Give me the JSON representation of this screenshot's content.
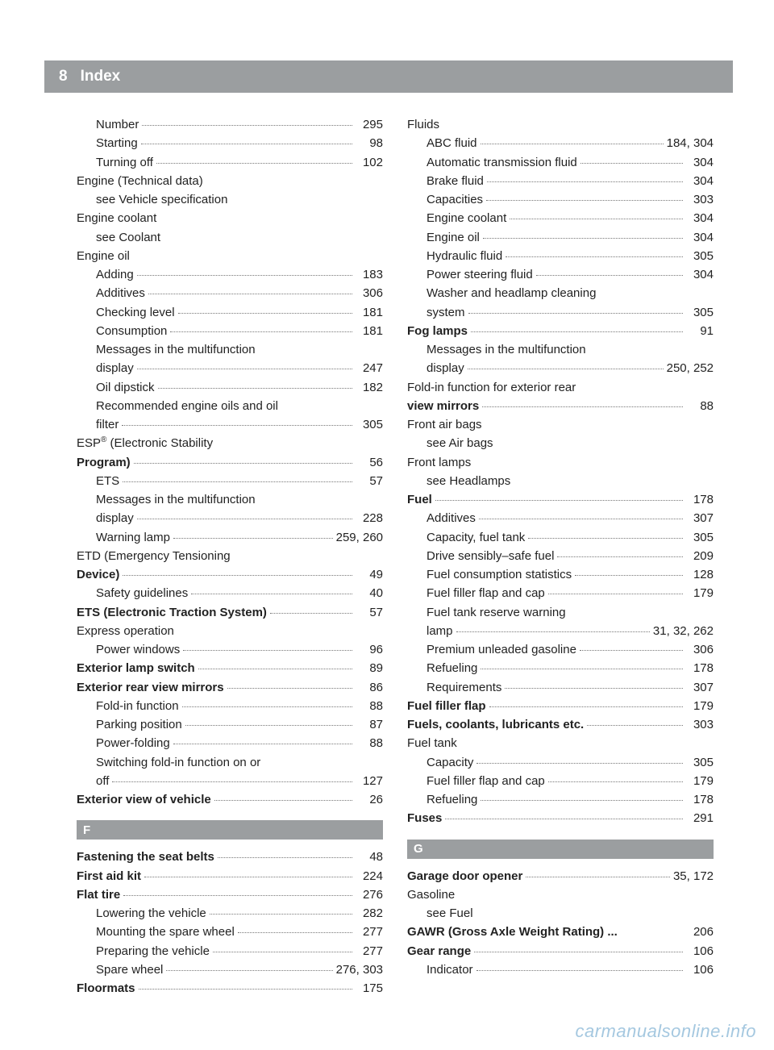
{
  "header": {
    "pagenum": "8",
    "title": "Index"
  },
  "footer": "carmanualsonline.info",
  "left": [
    {
      "type": "row",
      "sub": true,
      "label": "Number",
      "page": "295"
    },
    {
      "type": "row",
      "sub": true,
      "label": "Starting",
      "page": "98"
    },
    {
      "type": "row",
      "sub": true,
      "label": "Turning off",
      "page": "102"
    },
    {
      "type": "plain",
      "bold": true,
      "label": "Engine (Technical data)"
    },
    {
      "type": "plain",
      "sub": true,
      "label": "see Vehicle specification"
    },
    {
      "type": "plain",
      "bold": true,
      "label": "Engine coolant"
    },
    {
      "type": "plain",
      "sub": true,
      "label": "see Coolant"
    },
    {
      "type": "plain",
      "bold": true,
      "label": "Engine oil"
    },
    {
      "type": "row",
      "sub": true,
      "label": "Adding",
      "page": "183"
    },
    {
      "type": "row",
      "sub": true,
      "label": "Additives",
      "page": "306"
    },
    {
      "type": "row",
      "sub": true,
      "label": "Checking level",
      "page": "181"
    },
    {
      "type": "row",
      "sub": true,
      "label": "Consumption",
      "page": "181"
    },
    {
      "type": "plain",
      "sub": true,
      "label": "Messages in the multifunction"
    },
    {
      "type": "row",
      "sub": true,
      "label": "display",
      "page": "247"
    },
    {
      "type": "row",
      "sub": true,
      "label": "Oil dipstick",
      "page": "182"
    },
    {
      "type": "plain",
      "sub": true,
      "label": "Recommended engine oils and oil"
    },
    {
      "type": "row",
      "sub": true,
      "label": "filter",
      "page": "305"
    },
    {
      "type": "plain",
      "bold": true,
      "label": "ESP® (Electronic Stability",
      "sup": true
    },
    {
      "type": "row",
      "bold": true,
      "label": "Program)",
      "page": "56"
    },
    {
      "type": "row",
      "sub": true,
      "label": "ETS",
      "page": "57"
    },
    {
      "type": "plain",
      "sub": true,
      "label": "Messages in the multifunction"
    },
    {
      "type": "row",
      "sub": true,
      "label": "display",
      "page": "228"
    },
    {
      "type": "row",
      "sub": true,
      "label": "Warning lamp",
      "page": "259, 260"
    },
    {
      "type": "plain",
      "bold": true,
      "label": "ETD (Emergency Tensioning"
    },
    {
      "type": "row",
      "bold": true,
      "label": "Device)",
      "page": "49"
    },
    {
      "type": "row",
      "sub": true,
      "label": "Safety guidelines",
      "page": "40"
    },
    {
      "type": "row",
      "bold": true,
      "label": "ETS (Electronic Traction System)",
      "page": "57"
    },
    {
      "type": "plain",
      "bold": true,
      "label": "Express operation"
    },
    {
      "type": "row",
      "sub": true,
      "label": "Power windows",
      "page": "96"
    },
    {
      "type": "row",
      "bold": true,
      "label": "Exterior lamp switch",
      "page": "89"
    },
    {
      "type": "row",
      "bold": true,
      "label": "Exterior rear view mirrors",
      "page": "86"
    },
    {
      "type": "row",
      "sub": true,
      "label": "Fold-in function",
      "page": "88"
    },
    {
      "type": "row",
      "sub": true,
      "label": "Parking position",
      "page": "87"
    },
    {
      "type": "row",
      "sub": true,
      "label": "Power-folding",
      "page": "88"
    },
    {
      "type": "plain",
      "sub": true,
      "label": "Switching fold-in function on or"
    },
    {
      "type": "row",
      "sub": true,
      "label": "off",
      "page": "127"
    },
    {
      "type": "row",
      "bold": true,
      "label": "Exterior view of vehicle",
      "page": "26"
    },
    {
      "type": "section",
      "label": "F"
    },
    {
      "type": "row",
      "bold": true,
      "label": "Fastening the seat belts",
      "page": "48"
    },
    {
      "type": "row",
      "bold": true,
      "label": "First aid kit",
      "page": "224"
    },
    {
      "type": "row",
      "bold": true,
      "label": "Flat tire",
      "page": "276"
    },
    {
      "type": "row",
      "sub": true,
      "label": "Lowering the vehicle",
      "page": "282"
    },
    {
      "type": "row",
      "sub": true,
      "label": "Mounting the spare wheel",
      "page": "277"
    },
    {
      "type": "row",
      "sub": true,
      "label": "Preparing the vehicle",
      "page": "277"
    },
    {
      "type": "row",
      "sub": true,
      "label": "Spare wheel",
      "page": "276, 303"
    },
    {
      "type": "row",
      "bold": true,
      "label": "Floormats",
      "page": "175"
    }
  ],
  "right": [
    {
      "type": "plain",
      "bold": true,
      "label": "Fluids"
    },
    {
      "type": "row",
      "sub": true,
      "label": "ABC fluid",
      "page": "184, 304"
    },
    {
      "type": "row",
      "sub": true,
      "label": "Automatic transmission fluid",
      "page": "304"
    },
    {
      "type": "row",
      "sub": true,
      "label": "Brake fluid",
      "page": "304"
    },
    {
      "type": "row",
      "sub": true,
      "label": "Capacities",
      "page": "303"
    },
    {
      "type": "row",
      "sub": true,
      "label": "Engine coolant",
      "page": "304"
    },
    {
      "type": "row",
      "sub": true,
      "label": "Engine oil",
      "page": "304"
    },
    {
      "type": "row",
      "sub": true,
      "label": "Hydraulic fluid",
      "page": "305"
    },
    {
      "type": "row",
      "sub": true,
      "label": "Power steering fluid",
      "page": "304"
    },
    {
      "type": "plain",
      "sub": true,
      "label": "Washer and headlamp cleaning"
    },
    {
      "type": "row",
      "sub": true,
      "label": "system",
      "page": "305"
    },
    {
      "type": "row",
      "bold": true,
      "label": "Fog lamps",
      "page": "91"
    },
    {
      "type": "plain",
      "sub": true,
      "label": "Messages in the multifunction"
    },
    {
      "type": "row",
      "sub": true,
      "label": "display",
      "page": "250, 252"
    },
    {
      "type": "plain",
      "bold": true,
      "label": "Fold-in function for exterior rear"
    },
    {
      "type": "row",
      "bold": true,
      "label": "view mirrors",
      "page": "88"
    },
    {
      "type": "plain",
      "bold": true,
      "label": "Front air bags"
    },
    {
      "type": "plain",
      "sub": true,
      "label": "see Air bags"
    },
    {
      "type": "plain",
      "bold": true,
      "label": "Front lamps"
    },
    {
      "type": "plain",
      "sub": true,
      "label": "see Headlamps"
    },
    {
      "type": "row",
      "bold": true,
      "label": "Fuel",
      "page": "178"
    },
    {
      "type": "row",
      "sub": true,
      "label": "Additives",
      "page": "307"
    },
    {
      "type": "row",
      "sub": true,
      "label": "Capacity, fuel tank",
      "page": "305"
    },
    {
      "type": "row",
      "sub": true,
      "label": "Drive sensibly–safe fuel",
      "page": "209"
    },
    {
      "type": "row",
      "sub": true,
      "label": "Fuel consumption statistics",
      "page": "128"
    },
    {
      "type": "row",
      "sub": true,
      "label": "Fuel filler flap and cap",
      "page": "179"
    },
    {
      "type": "plain",
      "sub": true,
      "label": "Fuel tank reserve warning"
    },
    {
      "type": "row",
      "sub": true,
      "label": "lamp",
      "page": "31, 32, 262"
    },
    {
      "type": "row",
      "sub": true,
      "label": "Premium unleaded gasoline",
      "page": "306"
    },
    {
      "type": "row",
      "sub": true,
      "label": "Refueling",
      "page": "178"
    },
    {
      "type": "row",
      "sub": true,
      "label": "Requirements",
      "page": "307"
    },
    {
      "type": "row",
      "bold": true,
      "label": "Fuel filler flap",
      "page": "179"
    },
    {
      "type": "row",
      "bold": true,
      "label": "Fuels, coolants, lubricants etc.",
      "page": "303"
    },
    {
      "type": "plain",
      "bold": true,
      "label": "Fuel tank"
    },
    {
      "type": "row",
      "sub": true,
      "label": "Capacity",
      "page": "305"
    },
    {
      "type": "row",
      "sub": true,
      "label": "Fuel filler flap and cap",
      "page": "179"
    },
    {
      "type": "row",
      "sub": true,
      "label": "Refueling",
      "page": "178"
    },
    {
      "type": "row",
      "bold": true,
      "label": "Fuses",
      "page": "291"
    },
    {
      "type": "section",
      "label": "G"
    },
    {
      "type": "row",
      "bold": true,
      "label": "Garage door opener",
      "page": "35, 172"
    },
    {
      "type": "plain",
      "bold": true,
      "label": "Gasoline"
    },
    {
      "type": "plain",
      "sub": true,
      "label": "see Fuel"
    },
    {
      "type": "row",
      "bold": true,
      "label": "GAWR (Gross Axle Weight Rating) ...",
      "nodots": true,
      "page": "206"
    },
    {
      "type": "row",
      "bold": true,
      "label": "Gear range",
      "page": "106"
    },
    {
      "type": "row",
      "sub": true,
      "label": "Indicator",
      "page": "106"
    }
  ]
}
